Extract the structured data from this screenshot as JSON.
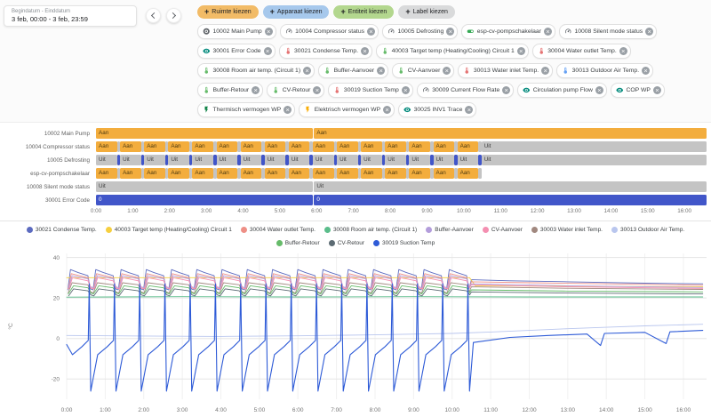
{
  "header": {
    "date_label": "Begindatum - Einddatum",
    "date_value": "3 feb, 00:00 - 3 feb, 23:59",
    "filters": [
      {
        "label": "Ruimte kiezen",
        "color": "#f2bb66"
      },
      {
        "label": "Apparaat kiezen",
        "color": "#a6c8ec"
      },
      {
        "label": "Entiteit kiezen",
        "color": "#b3d78e"
      },
      {
        "label": "Label kiezen",
        "color": "#d9dadb"
      }
    ]
  },
  "entity_chips": [
    {
      "label": "10002 Main Pump",
      "icon": "pump-icon",
      "icon_color": "#5f6368"
    },
    {
      "label": "10004 Compressor status",
      "icon": "gauge-icon",
      "icon_color": "#5f6368"
    },
    {
      "label": "10005 Defrosting",
      "icon": "gauge-icon",
      "icon_color": "#5f6368"
    },
    {
      "label": "esp-cv-pompschakelaar",
      "icon": "toggle-icon",
      "icon_color": "#34a853"
    },
    {
      "label": "10008 Silent mode status",
      "icon": "gauge-icon",
      "icon_color": "#5f6368"
    },
    {
      "label": "30001 Error Code",
      "icon": "eye-icon",
      "icon_color": "#00897b"
    },
    {
      "label": "30021 Condense Temp.",
      "icon": "thermometer-icon",
      "icon_color": "#e57373"
    },
    {
      "label": "40003 Target temp (Heating/Cooling) Circuit 1",
      "icon": "thermometer-icon",
      "icon_color": "#66bb6a"
    },
    {
      "label": "30004 Water outlet Temp.",
      "icon": "thermometer-icon",
      "icon_color": "#e57373"
    },
    {
      "label": "30008 Room air temp. (Circuit 1)",
      "icon": "thermometer-icon",
      "icon_color": "#66bb6a"
    },
    {
      "label": "Buffer-Aanvoer",
      "icon": "thermometer-icon",
      "icon_color": "#66bb6a"
    },
    {
      "label": "CV-Aanvoer",
      "icon": "thermometer-icon",
      "icon_color": "#66bb6a"
    },
    {
      "label": "30013 Water inlet Temp.",
      "icon": "thermometer-icon",
      "icon_color": "#e57373"
    },
    {
      "label": "30013 Outdoor Air Temp.",
      "icon": "thermometer-icon",
      "icon_color": "#64a0f4"
    },
    {
      "label": "Buffer-Retour",
      "icon": "thermometer-icon",
      "icon_color": "#66bb6a"
    },
    {
      "label": "CV-Retour",
      "icon": "thermometer-icon",
      "icon_color": "#66bb6a"
    },
    {
      "label": "30019 Suction Temp",
      "icon": "thermometer-icon",
      "icon_color": "#e57373"
    },
    {
      "label": "30009 Current Flow Rate",
      "icon": "gauge-icon",
      "icon_color": "#5f6368"
    },
    {
      "label": "Circulation pump Flow",
      "icon": "eye-icon",
      "icon_color": "#00897b"
    },
    {
      "label": "COP WP",
      "icon": "eye-icon",
      "icon_color": "#00897b"
    },
    {
      "label": "Thermisch vermogen WP",
      "icon": "flash-icon",
      "icon_color": "#0b8043"
    },
    {
      "label": "Elektrisch vermogen WP",
      "icon": "flash-icon",
      "icon_color": "#f9ab00"
    },
    {
      "label": "30025 INV1 Trace",
      "icon": "eye-icon",
      "icon_color": "#00897b"
    }
  ],
  "timeline": {
    "hours_end": 16.6,
    "period": 0.655,
    "on_duration": 0.57,
    "colors": {
      "on": "#f3ad3d",
      "on_text": "#4d3b11",
      "off": "#c4c4c4",
      "off_text": "#3a3a3a",
      "blue": "#4156c9",
      "blue_text": "#ffffff"
    },
    "rows": [
      {
        "label": "10002 Main Pump",
        "segments": [
          [
            0,
            5.9,
            "Aan",
            "on"
          ],
          [
            5.93,
            16.6,
            "Aan",
            "on"
          ]
        ]
      },
      {
        "label": "10004 Compressor status",
        "cycles": {
          "state": "Aan",
          "color": "on",
          "gap_color": "off"
        },
        "tail": [
          10.48,
          16.6,
          "Uit",
          "off"
        ]
      },
      {
        "label": "10005 Defrosting",
        "cycles": {
          "state": "Uit",
          "color": "off",
          "gap_color": "blue"
        },
        "tail": [
          10.48,
          16.6,
          "Uit",
          "off"
        ]
      },
      {
        "label": "esp-cv-pompschakelaar",
        "cycles": {
          "state": "Aan",
          "color": "on",
          "gap_color": "off"
        }
      },
      {
        "label": "10008 Silent mode status",
        "segments": [
          [
            0,
            5.9,
            "Uit",
            "off"
          ],
          [
            5.93,
            16.6,
            "Uit",
            "off"
          ]
        ]
      },
      {
        "label": "30001 Error Code",
        "segments": [
          [
            0,
            5.9,
            "0",
            "blue"
          ],
          [
            5.93,
            16.6,
            "0",
            "blue"
          ]
        ]
      }
    ],
    "axis_labels": [
      "0:00",
      "1:00",
      "2:00",
      "3:00",
      "4:00",
      "5:00",
      "6:00",
      "7:00",
      "8:00",
      "9:00",
      "10:00",
      "11:00",
      "12:00",
      "13:00",
      "14:00",
      "15:00",
      "16:00"
    ]
  },
  "chart_data": {
    "type": "line",
    "title": "",
    "xlabel": "",
    "ylabel": "°C",
    "xlim": [
      0,
      16.6
    ],
    "ylim": [
      -30,
      42
    ],
    "yticks": [
      40,
      20,
      0,
      -20
    ],
    "xtick_labels": [
      "0:00",
      "1:00",
      "2:00",
      "3:00",
      "4:00",
      "5:00",
      "6:00",
      "7:00",
      "8:00",
      "9:00",
      "10:00",
      "11:00",
      "12:00",
      "13:00",
      "14:00",
      "15:00",
      "16:00"
    ],
    "grid": true,
    "legend_position": "top",
    "legend_break_after": 8,
    "cycle_starts": [
      0,
      0.655,
      1.31,
      1.965,
      2.62,
      3.275,
      3.93,
      4.585,
      5.24,
      5.895,
      6.55,
      7.205,
      7.86,
      8.515,
      9.17,
      9.825
    ],
    "series": [
      {
        "name": "30021 Condense Temp.",
        "color": "#5c6bc0",
        "pattern": [
          [
            0.03,
            24
          ],
          [
            0.1,
            34
          ],
          [
            0.3,
            32.5
          ],
          [
            0.55,
            31
          ],
          [
            0.615,
            24.5
          ]
        ],
        "post": [
          [
            10.5,
            29
          ],
          [
            11.5,
            28.5
          ],
          [
            13,
            28
          ],
          [
            15,
            27.3
          ],
          [
            16.5,
            27
          ]
        ]
      },
      {
        "name": "40003 Target temp (Heating/Cooling) Circuit 1",
        "color": "#f6cf3f",
        "points": [
          [
            0,
            30
          ],
          [
            10.45,
            30
          ],
          [
            10.6,
            26
          ],
          [
            13,
            25.8
          ],
          [
            16.5,
            25.5
          ]
        ]
      },
      {
        "name": "30004 Water outlet Temp.",
        "color": "#ee8f86",
        "pattern": [
          [
            0.04,
            24.5
          ],
          [
            0.12,
            32
          ],
          [
            0.55,
            30
          ],
          [
            0.62,
            25
          ]
        ],
        "post": [
          [
            10.5,
            28
          ],
          [
            12,
            27.5
          ],
          [
            14,
            27
          ],
          [
            16.5,
            26.3
          ]
        ]
      },
      {
        "name": "30008 Room air temp. (Circuit 1)",
        "color": "#5bbd8b",
        "points": [
          [
            0,
            20.4
          ],
          [
            3,
            20.6
          ],
          [
            6,
            20.5
          ],
          [
            9,
            20.6
          ],
          [
            12,
            20.5
          ],
          [
            16.5,
            20.5
          ]
        ]
      },
      {
        "name": "Buffer-Aanvoer",
        "color": "#b39ddb",
        "pattern": [
          [
            0.05,
            25
          ],
          [
            0.14,
            31
          ],
          [
            0.55,
            29.5
          ],
          [
            0.62,
            25.5
          ]
        ],
        "post": [
          [
            10.5,
            27
          ],
          [
            13,
            26
          ],
          [
            16.5,
            25.2
          ]
        ]
      },
      {
        "name": "CV-Aanvoer",
        "color": "#f48fb1",
        "pattern": [
          [
            0.06,
            24.5
          ],
          [
            0.15,
            30
          ],
          [
            0.55,
            28.5
          ],
          [
            0.625,
            25
          ]
        ],
        "post": [
          [
            10.5,
            26.5
          ],
          [
            13,
            25.5
          ],
          [
            16.5,
            24.7
          ]
        ]
      },
      {
        "name": "30003 Water inlet Temp.",
        "color": "#a1887f",
        "pattern": [
          [
            0.04,
            22.5
          ],
          [
            0.14,
            27.5
          ],
          [
            0.55,
            26.5
          ],
          [
            0.62,
            23
          ]
        ],
        "post": [
          [
            10.5,
            25.5
          ],
          [
            13,
            24.8
          ],
          [
            16.5,
            24.2
          ]
        ]
      },
      {
        "name": "30013 Outdoor Air Temp.",
        "color": "#b9c6ee",
        "points": [
          [
            0,
            1.5
          ],
          [
            2,
            1.2
          ],
          [
            4,
            1.0
          ],
          [
            6,
            1.3
          ],
          [
            8,
            1.8
          ],
          [
            10,
            2.5
          ],
          [
            11,
            3.2
          ],
          [
            12,
            4.0
          ],
          [
            13,
            4.8
          ],
          [
            14,
            5.5
          ],
          [
            15,
            6.2
          ],
          [
            16.5,
            7.0
          ]
        ]
      },
      {
        "name": "Buffer-Retour",
        "color": "#66bb6a",
        "pattern": [
          [
            0.04,
            22
          ],
          [
            0.18,
            26
          ],
          [
            0.55,
            25
          ],
          [
            0.625,
            22.5
          ]
        ],
        "post": [
          [
            10.5,
            24
          ],
          [
            13,
            23.4
          ],
          [
            16.5,
            23
          ]
        ]
      },
      {
        "name": "CV-Retour",
        "color": "#5c6b73",
        "pattern": [
          [
            0.05,
            21
          ],
          [
            0.18,
            24.5
          ],
          [
            0.55,
            23.5
          ],
          [
            0.63,
            21.5
          ]
        ],
        "post": [
          [
            10.5,
            23
          ],
          [
            13,
            22.4
          ],
          [
            16.5,
            22
          ]
        ]
      },
      {
        "name": "30019 Suction Temp",
        "color": "#2e5bd7",
        "pre": [
          [
            0,
            -3
          ]
        ],
        "pattern": [
          [
            0.15,
            -8
          ],
          [
            0.4,
            -4
          ],
          [
            0.56,
            -1
          ],
          [
            0.585,
            27
          ],
          [
            0.625,
            -26
          ]
        ],
        "post": [
          [
            10.55,
            -2
          ],
          [
            11.5,
            0.5
          ],
          [
            12.5,
            1.5
          ],
          [
            13.5,
            2.2
          ],
          [
            13.85,
            -3.5
          ],
          [
            13.95,
            2.5
          ],
          [
            15,
            3
          ],
          [
            15.55,
            -2.5
          ],
          [
            15.65,
            3.3
          ],
          [
            16.5,
            4
          ]
        ]
      }
    ]
  }
}
